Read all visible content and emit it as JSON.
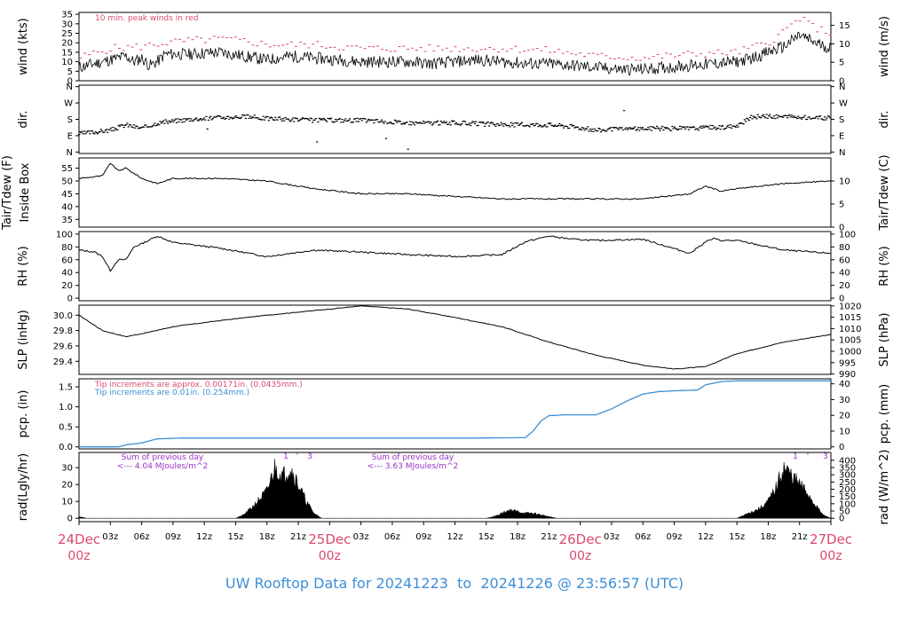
{
  "footer": {
    "prefix": "UW Rooftop Data for",
    "start": "20241223",
    "sep": "to",
    "end": "20241226 @ 23:56:57",
    "tz": "(UTC)"
  },
  "colors": {
    "peak": "#d94a6b",
    "pcp_hundredths": "#3d8fd6",
    "radiation_note": "#9b30c8",
    "date_label": "#d94a6b",
    "footer": "#3d8fd6",
    "data": "#000000"
  },
  "chart_data": [
    {
      "type": "line",
      "ylabel": "wind (kts)",
      "ylabel_right": "wind (m/s)",
      "ylim": [
        0,
        36
      ],
      "yticks": [
        0,
        5,
        10,
        15,
        20,
        25,
        30,
        35
      ],
      "ylim_right": [
        0,
        18.5
      ],
      "yticks_right": [
        0,
        5,
        10,
        15
      ],
      "annotation": "10 min. peak winds in red",
      "series": [
        {
          "name": "wind",
          "x": [
            0,
            2,
            4,
            6,
            7,
            8,
            9,
            10,
            11,
            14,
            18,
            21,
            24,
            27,
            30,
            33,
            36,
            39,
            42,
            45,
            48,
            51,
            54,
            57,
            60,
            63,
            66,
            69,
            72,
            75,
            78,
            81,
            84,
            86,
            88,
            90,
            92,
            94,
            96
          ],
          "y": [
            7,
            9,
            11,
            13,
            10,
            12,
            8,
            10,
            14,
            14,
            15,
            13,
            11,
            13,
            12,
            11,
            10,
            10,
            10,
            9,
            10,
            11,
            10,
            9,
            9,
            8,
            7,
            6,
            6,
            7,
            8,
            9,
            10,
            12,
            15,
            18,
            24,
            20,
            17
          ]
        },
        {
          "name": "10 min. peak winds",
          "x": [
            0,
            4,
            8,
            11,
            14,
            18,
            21,
            24,
            30,
            36,
            42,
            48,
            54,
            60,
            66,
            72,
            78,
            84,
            88,
            90,
            92,
            94,
            96
          ],
          "y": [
            12,
            17,
            18,
            20,
            21,
            22,
            21,
            19,
            19,
            17,
            17,
            17,
            17,
            16,
            13,
            12,
            14,
            15,
            20,
            26,
            33,
            28,
            25
          ]
        }
      ]
    },
    {
      "type": "scatter",
      "ylabel": "dir.",
      "ylabel_right": "dir.",
      "yticks": [
        "N",
        "E",
        "S",
        "W",
        "N"
      ],
      "series": [
        {
          "name": "direction (deg)",
          "x": [
            0,
            2,
            4,
            6,
            8,
            10,
            12,
            14,
            18,
            21,
            24,
            30,
            36,
            42,
            48,
            54,
            60,
            63,
            66,
            72,
            78,
            84,
            86,
            90,
            96
          ],
          "y": [
            100,
            110,
            120,
            150,
            130,
            160,
            170,
            180,
            190,
            195,
            185,
            175,
            175,
            160,
            160,
            150,
            150,
            140,
            120,
            130,
            130,
            140,
            195,
            195,
            185
          ]
        }
      ]
    },
    {
      "type": "line",
      "ylabel": "Tair/Tdew (F)",
      "ylabel2": "Inside Box",
      "ylabel_right": "Tair/Tdew (C)",
      "ylim": [
        32,
        59
      ],
      "yticks": [
        35,
        40,
        45,
        50,
        55
      ],
      "ylim_right": [
        0,
        15
      ],
      "yticks_right": [
        0,
        5,
        10
      ],
      "series": [
        {
          "name": "Tair inside box",
          "x": [
            0,
            3,
            4,
            5,
            6,
            8,
            10,
            12,
            18,
            24,
            30,
            36,
            42,
            48,
            54,
            60,
            66,
            72,
            78,
            80,
            82,
            84,
            90,
            96
          ],
          "y": [
            51,
            52,
            57,
            54,
            55,
            51,
            49,
            51,
            51,
            50,
            47,
            45,
            45,
            44,
            43,
            43,
            43,
            43,
            45,
            48,
            46,
            47,
            49,
            50
          ]
        }
      ]
    },
    {
      "type": "line",
      "ylabel": "RH (%)",
      "ylabel_right": "RH (%)",
      "ylim": [
        0,
        100
      ],
      "yticks": [
        0,
        20,
        40,
        60,
        80,
        100
      ],
      "series": [
        {
          "name": "RH",
          "x": [
            0,
            2,
            3,
            4,
            5,
            6,
            7,
            8,
            10,
            12,
            18,
            24,
            30,
            36,
            42,
            48,
            54,
            57,
            60,
            63,
            66,
            72,
            78,
            80,
            81,
            82,
            84,
            90,
            96
          ],
          "y": [
            75,
            72,
            65,
            43,
            60,
            60,
            80,
            85,
            97,
            87,
            78,
            65,
            75,
            72,
            68,
            65,
            68,
            88,
            97,
            92,
            90,
            92,
            70,
            88,
            93,
            90,
            90,
            75,
            70
          ]
        }
      ]
    },
    {
      "type": "line",
      "ylabel": "SLP (inHg)",
      "ylabel_right": "SLP (hPa)",
      "ylim": [
        29.23,
        30.13
      ],
      "yticks": [
        29.4,
        29.6,
        29.8,
        30.0
      ],
      "yticks_right": [
        990,
        995,
        1000,
        1005,
        1010,
        1015,
        1020
      ],
      "series": [
        {
          "name": "SLP",
          "x": [
            0,
            3,
            6,
            9,
            12,
            18,
            24,
            30,
            36,
            42,
            48,
            54,
            60,
            66,
            72,
            76,
            80,
            84,
            90,
            96
          ],
          "y": [
            30.0,
            29.8,
            29.72,
            29.78,
            29.85,
            29.93,
            30.0,
            30.06,
            30.12,
            30.08,
            29.97,
            29.85,
            29.65,
            29.48,
            29.35,
            29.3,
            29.33,
            29.5,
            29.65,
            29.75
          ]
        }
      ]
    },
    {
      "type": "line",
      "ylabel": "pcp. (in)",
      "ylabel_right": "pcp. (mm)",
      "ylim": [
        -0.05,
        1.7
      ],
      "yticks": [
        0.0,
        0.5,
        1.0,
        1.5
      ],
      "yticks_right": [
        0,
        10,
        20,
        30,
        40
      ],
      "annotations": [
        "Tip increments are approx. 0.00171in. (0.0435mm.)",
        "Tip increments are 0.01in. (0.254mm.)"
      ],
      "series": [
        {
          "name": "cumulative pcp",
          "x": [
            0,
            5,
            6,
            8,
            10,
            13,
            20,
            30,
            40,
            50,
            57,
            58,
            59,
            60,
            62,
            66,
            68,
            70,
            72,
            74,
            76,
            79,
            80,
            82,
            84,
            90,
            96
          ],
          "y": [
            0,
            0,
            0.05,
            0.1,
            0.2,
            0.22,
            0.22,
            0.22,
            0.22,
            0.22,
            0.23,
            0.4,
            0.65,
            0.78,
            0.8,
            0.8,
            0.95,
            1.15,
            1.32,
            1.38,
            1.4,
            1.42,
            1.55,
            1.63,
            1.65,
            1.65,
            1.65
          ]
        }
      ]
    },
    {
      "type": "area",
      "ylabel": "rad(Lgly/hr)",
      "ylabel_right": "rad (W/m^2)",
      "ylim": [
        -2,
        39
      ],
      "yticks": [
        0,
        10,
        20,
        30
      ],
      "yticks_right": [
        0,
        50,
        100,
        150,
        200,
        250,
        300,
        350,
        400
      ],
      "notes": [
        {
          "line1": "Sum of previous day",
          "line2": "<--- 4.04 MJoules/m^2"
        },
        {
          "line1": "Sum of previous day",
          "line2": "<--- 3.63 MJoules/m^2"
        }
      ],
      "markers": [
        "1",
        "'",
        "3",
        "1",
        "'",
        "3"
      ],
      "series": [
        {
          "name": "radiation",
          "x": [
            0,
            1,
            2,
            20,
            21,
            22,
            23,
            24,
            25,
            26,
            27,
            28,
            29,
            30,
            31,
            32,
            52,
            53,
            54,
            55,
            56,
            57,
            58,
            59,
            60,
            61,
            62,
            63,
            84,
            85,
            86,
            87,
            88,
            89,
            90,
            91,
            92,
            93,
            94,
            95,
            96
          ],
          "y": [
            1,
            0,
            0,
            0,
            2,
            6,
            11,
            16,
            30,
            25,
            30,
            20,
            10,
            3,
            0,
            0,
            0,
            1,
            3,
            5,
            4,
            3,
            3,
            2,
            1,
            0,
            0,
            0,
            0,
            2,
            4,
            6,
            10,
            18,
            30,
            25,
            20,
            15,
            8,
            2,
            0
          ]
        }
      ]
    }
  ],
  "xaxis": {
    "ticks": [
      "24Dec",
      "03z",
      "06z",
      "09z",
      "12z",
      "15z",
      "18z",
      "21z",
      "25Dec",
      "03z",
      "06z",
      "09z",
      "12z",
      "15z",
      "18z",
      "21z",
      "26Dec",
      "03z",
      "06z",
      "09z",
      "12z",
      "15z",
      "18z",
      "21z",
      "27Dec"
    ],
    "day_labels": [
      "24Dec",
      "25Dec",
      "26Dec",
      "27Dec"
    ],
    "day_hours": [
      "00z",
      "00z",
      "00z",
      "00z"
    ]
  }
}
